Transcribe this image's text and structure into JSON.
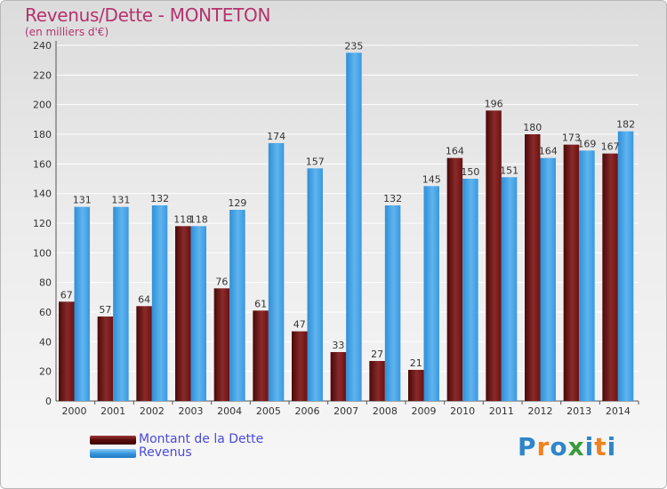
{
  "header": {
    "title": "Revenus/Dette - MONTETON",
    "subtitle": "(en milliers d'€)"
  },
  "legend": {
    "items": [
      {
        "label": "Montant de la Dette",
        "color": "#6e0f0f"
      },
      {
        "label": "Revenus",
        "color": "#4aa3e6"
      }
    ]
  },
  "logo": {
    "letters": [
      "P",
      "r",
      "o",
      "x",
      "i",
      "t",
      "i"
    ],
    "colors": [
      "#2e86c8",
      "#f2811d",
      "#2e86c8",
      "#3a9b3a",
      "#2e86c8",
      "#f2811d",
      "#2e86c8"
    ]
  },
  "chart_data": {
    "type": "bar",
    "title": "Revenus/Dette - MONTETON",
    "subtitle": "(en milliers d'€)",
    "categories": [
      "2000",
      "2001",
      "2002",
      "2003",
      "2004",
      "2005",
      "2006",
      "2007",
      "2008",
      "2009",
      "2010",
      "2011",
      "2012",
      "2013",
      "2014"
    ],
    "series": [
      {
        "name": "Montant de la Dette",
        "color": "#7a1c1c",
        "values": [
          67,
          57,
          64,
          118,
          76,
          61,
          47,
          33,
          27,
          21,
          164,
          196,
          180,
          173,
          167
        ]
      },
      {
        "name": "Revenus",
        "color": "#4aa3e6",
        "values": [
          131,
          131,
          132,
          118,
          129,
          174,
          157,
          235,
          132,
          145,
          150,
          151,
          164,
          169,
          182
        ]
      }
    ],
    "yticks": [
      0,
      20,
      40,
      60,
      80,
      100,
      120,
      140,
      160,
      180,
      200,
      220,
      240
    ],
    "ylim": [
      0,
      240
    ],
    "grid": true,
    "legend_position": "bottom-left"
  }
}
